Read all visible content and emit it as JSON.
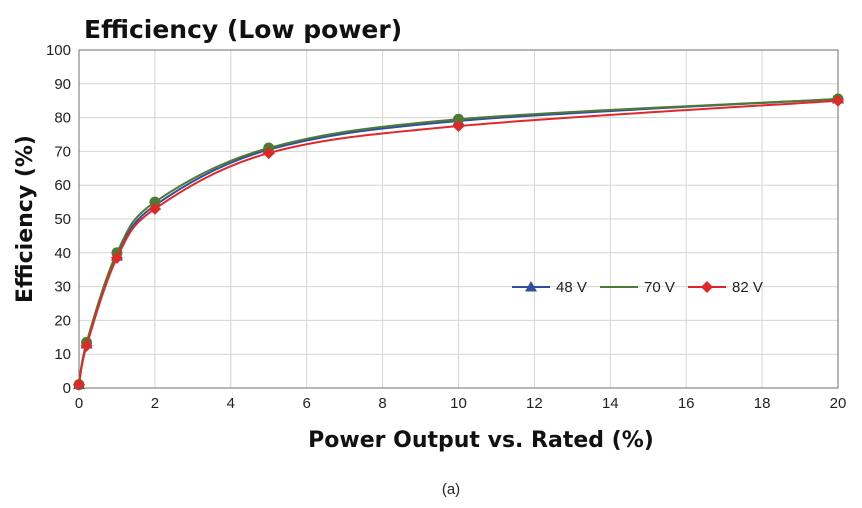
{
  "chart_data": {
    "type": "line",
    "title": "Efficiency (Low power)",
    "xlabel": "Power Output vs. Rated (%)",
    "ylabel": "Efficiency (%)",
    "caption": "(a)",
    "xlim": [
      0,
      20
    ],
    "ylim": [
      0,
      100
    ],
    "xticks": [
      0,
      2,
      4,
      6,
      8,
      10,
      12,
      14,
      16,
      18,
      20
    ],
    "yticks": [
      0,
      10,
      20,
      30,
      40,
      50,
      60,
      70,
      80,
      90,
      100
    ],
    "grid": true,
    "legend_position": "right-middle",
    "series": [
      {
        "name": "48 V",
        "color": "#2f4f9e",
        "marker": "triangle",
        "x": [
          0,
          0.2,
          1,
          2,
          5,
          10,
          20
        ],
        "y": [
          1,
          13,
          39,
          54,
          70.5,
          79,
          85.5
        ]
      },
      {
        "name": "70 V",
        "color": "#4f7a35",
        "marker": "circle",
        "x": [
          0,
          0.2,
          1,
          2,
          5,
          10,
          20
        ],
        "y": [
          1,
          13.5,
          40,
          55,
          71,
          79.5,
          85.5
        ]
      },
      {
        "name": "82 V",
        "color": "#e02828",
        "marker": "diamond",
        "x": [
          0,
          0.2,
          1,
          2,
          5,
          10,
          20
        ],
        "y": [
          1,
          12.5,
          38.5,
          53,
          69.5,
          77.5,
          85
        ]
      }
    ]
  }
}
